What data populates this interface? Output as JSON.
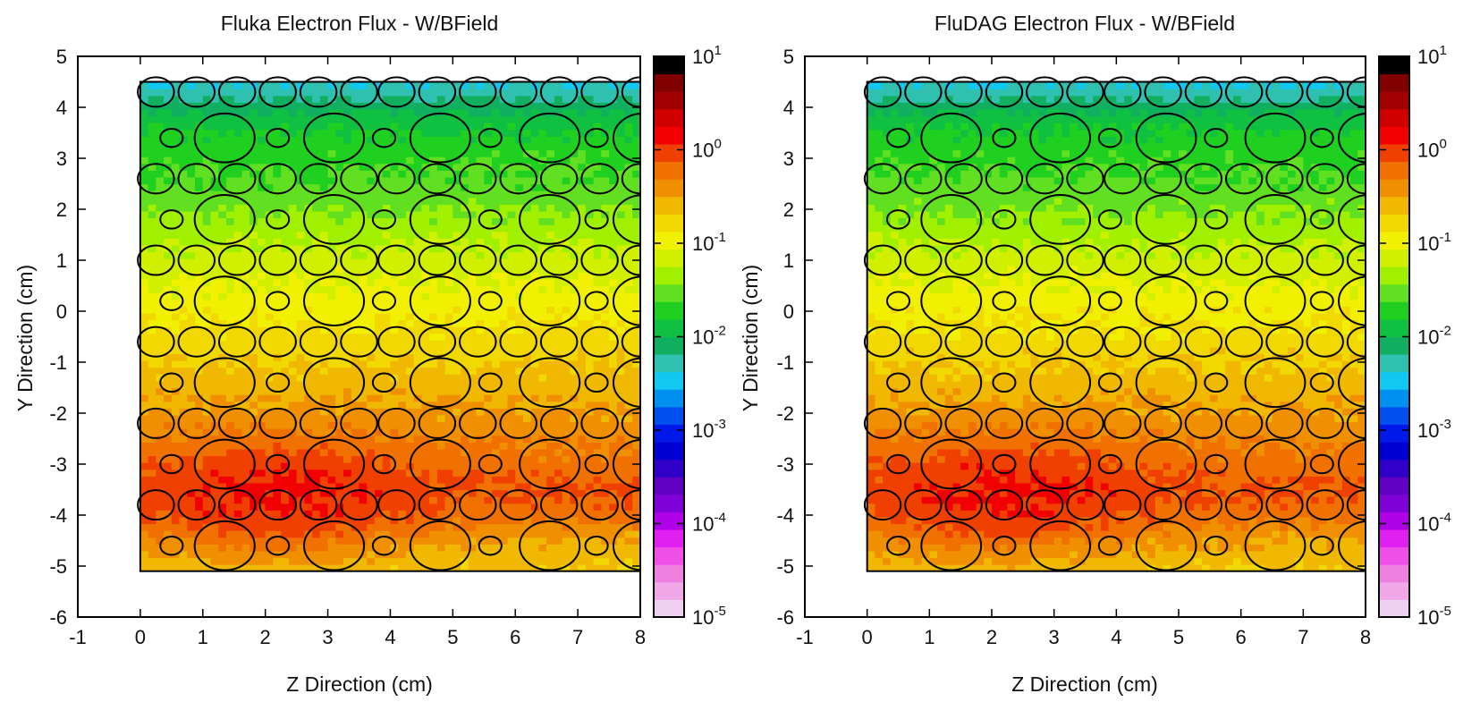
{
  "chart_data": [
    {
      "type": "heatmap",
      "title": "Fluka Electron Flux - W/BField",
      "xlabel": "Z Direction (cm)",
      "ylabel": "Y Direction (cm)",
      "xlim": [
        -1,
        8
      ],
      "ylim": [
        -6,
        5
      ],
      "x_ticks": [
        "-1",
        "0",
        "1",
        "2",
        "3",
        "4",
        "5",
        "6",
        "7",
        "8"
      ],
      "y_ticks": [
        "5",
        "4",
        "3",
        "2",
        "1",
        "0",
        "-1",
        "-2",
        "-3",
        "-4",
        "-5",
        "-6"
      ],
      "region": {
        "z": [
          0,
          8
        ],
        "y": [
          -5.1,
          4.5
        ]
      },
      "colorbar": {
        "scale": "log",
        "range": [
          1e-05,
          10
        ],
        "ticks": [
          {
            "base": "10",
            "exp": "1"
          },
          {
            "base": "10",
            "exp": "0"
          },
          {
            "base": "10",
            "exp": "-1"
          },
          {
            "base": "10",
            "exp": "-2"
          },
          {
            "base": "10",
            "exp": "-3"
          },
          {
            "base": "10",
            "exp": "-4"
          },
          {
            "base": "10",
            "exp": "-5"
          }
        ]
      },
      "flux_profile_y": [
        [
          4.5,
          0.004
        ],
        [
          4.2,
          0.006
        ],
        [
          3.8,
          0.012
        ],
        [
          3.2,
          0.02
        ],
        [
          2.6,
          0.025
        ],
        [
          2.0,
          0.035
        ],
        [
          1.2,
          0.06
        ],
        [
          0.5,
          0.09
        ],
        [
          0.0,
          0.12
        ],
        [
          -0.8,
          0.18
        ],
        [
          -1.6,
          0.28
        ],
        [
          -2.4,
          0.42
        ],
        [
          -3.0,
          0.6
        ],
        [
          -3.5,
          0.8
        ],
        [
          -4.0,
          0.6
        ],
        [
          -4.5,
          0.3
        ],
        [
          -5.1,
          0.2
        ]
      ],
      "hotspot": {
        "z": 2.2,
        "y": -3.6,
        "value": 1.5
      },
      "geometry_circles": {
        "small_rows": [
          {
            "y": 4.3,
            "r": 0.29
          },
          {
            "y": 2.6,
            "r": 0.29
          },
          {
            "y": 1.0,
            "r": 0.29
          },
          {
            "y": -0.6,
            "r": 0.29
          },
          {
            "y": -2.2,
            "r": 0.29
          },
          {
            "y": -3.8,
            "r": 0.29
          }
        ],
        "small_z": [
          0.25,
          0.9,
          1.55,
          2.2,
          2.85,
          3.5,
          4.1,
          4.75,
          5.4,
          6.05,
          6.7,
          7.35,
          8.0
        ],
        "big_rows": [
          {
            "y": 3.4,
            "r_small": 0.18,
            "r_big": 0.48
          },
          {
            "y": 1.8,
            "r_small": 0.18,
            "r_big": 0.48
          },
          {
            "y": 0.2,
            "r_small": 0.18,
            "r_big": 0.48
          },
          {
            "y": -1.4,
            "r_small": 0.18,
            "r_big": 0.48
          },
          {
            "y": -3.0,
            "r_small": 0.18,
            "r_big": 0.48
          },
          {
            "y": -4.6,
            "r_small": 0.18,
            "r_big": 0.48
          }
        ],
        "big_row_small_z": [
          0.5,
          2.2,
          3.9,
          5.6,
          7.3
        ],
        "big_row_big_z": [
          1.35,
          3.1,
          4.8,
          6.55,
          8.05
        ]
      }
    },
    {
      "type": "heatmap",
      "title": "FluDAG Electron Flux - W/BField",
      "xlabel": "Z Direction (cm)",
      "ylabel": "Y Direction (cm)",
      "xlim": [
        -1,
        8
      ],
      "ylim": [
        -6,
        5
      ],
      "x_ticks": [
        "-1",
        "0",
        "1",
        "2",
        "3",
        "4",
        "5",
        "6",
        "7",
        "8"
      ],
      "y_ticks": [
        "5",
        "4",
        "3",
        "2",
        "1",
        "0",
        "-1",
        "-2",
        "-3",
        "-4",
        "-5",
        "-6"
      ],
      "region": {
        "z": [
          0,
          8
        ],
        "y": [
          -5.1,
          4.5
        ]
      },
      "colorbar": {
        "scale": "log",
        "range": [
          1e-05,
          10
        ],
        "ticks": [
          {
            "base": "10",
            "exp": "1"
          },
          {
            "base": "10",
            "exp": "0"
          },
          {
            "base": "10",
            "exp": "-1"
          },
          {
            "base": "10",
            "exp": "-2"
          },
          {
            "base": "10",
            "exp": "-3"
          },
          {
            "base": "10",
            "exp": "-4"
          },
          {
            "base": "10",
            "exp": "-5"
          }
        ]
      },
      "flux_profile_y": [
        [
          4.5,
          0.004
        ],
        [
          4.2,
          0.006
        ],
        [
          3.8,
          0.012
        ],
        [
          3.2,
          0.02
        ],
        [
          2.6,
          0.025
        ],
        [
          2.0,
          0.035
        ],
        [
          1.2,
          0.06
        ],
        [
          0.5,
          0.09
        ],
        [
          0.0,
          0.12
        ],
        [
          -0.8,
          0.18
        ],
        [
          -1.6,
          0.28
        ],
        [
          -2.4,
          0.42
        ],
        [
          -3.0,
          0.6
        ],
        [
          -3.5,
          0.8
        ],
        [
          -4.0,
          0.6
        ],
        [
          -4.5,
          0.3
        ],
        [
          -5.1,
          0.2
        ]
      ],
      "hotspot": {
        "z": 2.2,
        "y": -3.6,
        "value": 1.5
      },
      "geometry_circles": {
        "small_rows": [
          {
            "y": 4.3,
            "r": 0.29
          },
          {
            "y": 2.6,
            "r": 0.29
          },
          {
            "y": 1.0,
            "r": 0.29
          },
          {
            "y": -0.6,
            "r": 0.29
          },
          {
            "y": -2.2,
            "r": 0.29
          },
          {
            "y": -3.8,
            "r": 0.29
          }
        ],
        "small_z": [
          0.25,
          0.9,
          1.55,
          2.2,
          2.85,
          3.5,
          4.1,
          4.75,
          5.4,
          6.05,
          6.7,
          7.35,
          8.0
        ],
        "big_rows": [
          {
            "y": 3.4,
            "r_small": 0.18,
            "r_big": 0.48
          },
          {
            "y": 1.8,
            "r_small": 0.18,
            "r_big": 0.48
          },
          {
            "y": 0.2,
            "r_small": 0.18,
            "r_big": 0.48
          },
          {
            "y": -1.4,
            "r_small": 0.18,
            "r_big": 0.48
          },
          {
            "y": -3.0,
            "r_small": 0.18,
            "r_big": 0.48
          },
          {
            "y": -4.6,
            "r_small": 0.18,
            "r_big": 0.48
          }
        ],
        "big_row_small_z": [
          0.5,
          2.2,
          3.9,
          5.6,
          7.3
        ],
        "big_row_big_z": [
          1.35,
          3.1,
          4.8,
          6.55,
          8.05
        ]
      }
    }
  ],
  "colors": {
    "palette": [
      "#f0d0f0",
      "#f0a8e8",
      "#f080e0",
      "#f050e8",
      "#e020f0",
      "#b000e8",
      "#8000d8",
      "#6000c0",
      "#3000c8",
      "#0000d0",
      "#0018e8",
      "#0050f0",
      "#0090f0",
      "#10c8f0",
      "#30c0b0",
      "#10b060",
      "#10c040",
      "#20d020",
      "#60e020",
      "#a0f000",
      "#d0f000",
      "#f0f000",
      "#f0d800",
      "#f0b800",
      "#f09000",
      "#f07000",
      "#f04000",
      "#f00000",
      "#d00000",
      "#a00000",
      "#800000",
      "#000000"
    ],
    "outline": "#000000"
  }
}
